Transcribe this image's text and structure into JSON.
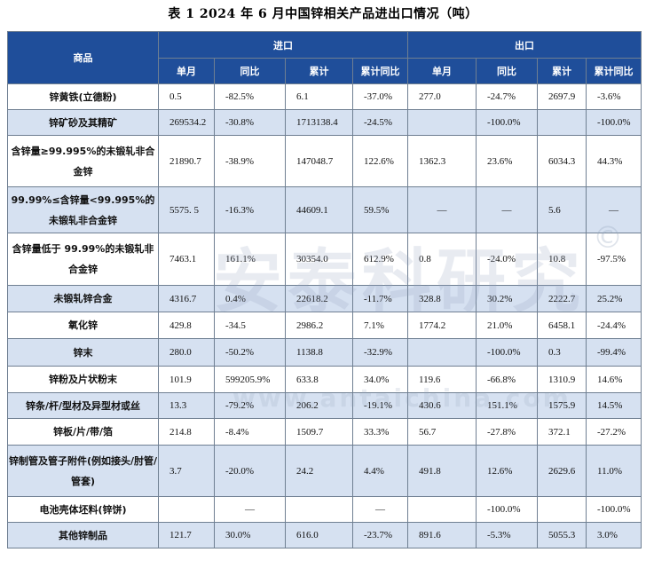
{
  "title": "表 1 2024 年 6 月中国锌相关产品进出口情况（吨）",
  "header": {
    "product": "商品",
    "import": "进口",
    "export": "出口",
    "cols": [
      "单月",
      "同比",
      "累计",
      "累计同比",
      "单月",
      "同比",
      "累计",
      "累计同比"
    ]
  },
  "rows": [
    {
      "name": "锌黄铁(立德粉)",
      "cells": [
        "0.5",
        "-82.5%",
        "6.1",
        "-37.0%",
        "277.0",
        "-24.7%",
        "2697.9",
        "-3.6%"
      ]
    },
    {
      "name": "锌矿砂及其精矿",
      "cells": [
        "269534.2",
        "-30.8%",
        "1713138.4",
        "-24.5%",
        "",
        "-100.0%",
        "",
        "-100.0%"
      ]
    },
    {
      "name": "含锌量≥99.995%的未锻轧非合金锌",
      "cells": [
        "21890.7",
        "-38.9%",
        "147048.7",
        "122.6%",
        "1362.3",
        "23.6%",
        "6034.3",
        "44.3%"
      ]
    },
    {
      "name": "99.99%≤含锌量<99.995%的未锻轧非合金锌",
      "cells": [
        "5575. 5",
        "-16.3%",
        "44609.1",
        "59.5%",
        "—",
        "—",
        "5.6",
        "—"
      ]
    },
    {
      "name": "含锌量低于 99.99%的未锻轧非合金锌",
      "cells": [
        "7463.1",
        "161.1%",
        "30354.0",
        "612.9%",
        "0.8",
        "-24.0%",
        "10.8",
        "-97.5%"
      ]
    },
    {
      "name": "未锻轧锌合金",
      "cells": [
        "4316.7",
        "0.4%",
        "22618.2",
        "-11.7%",
        "328.8",
        "30.2%",
        "2222.7",
        "25.2%"
      ]
    },
    {
      "name": "氧化锌",
      "cells": [
        "429.8",
        "-34.5",
        "2986.2",
        "7.1%",
        "1774.2",
        "21.0%",
        "6458.1",
        "-24.4%"
      ]
    },
    {
      "name": "锌末",
      "cells": [
        "280.0",
        "-50.2%",
        "1138.8",
        "-32.9%",
        "",
        "-100.0%",
        "0.3",
        "-99.4%"
      ]
    },
    {
      "name": "锌粉及片状粉末",
      "cells": [
        "101.9",
        "599205.9%",
        "633.8",
        "34.0%",
        "119.6",
        "-66.8%",
        "1310.9",
        "14.6%"
      ]
    },
    {
      "name": "锌条/杆/型材及异型材或丝",
      "cells": [
        "13.3",
        "-79.2%",
        "206.2",
        "-19.1%",
        "430.6",
        "151.1%",
        "1575.9",
        "14.5%"
      ]
    },
    {
      "name": "锌板/片/带/箔",
      "cells": [
        "214.8",
        "-8.4%",
        "1509.7",
        "33.3%",
        "56.7",
        "-27.8%",
        "372.1",
        "-27.2%"
      ]
    },
    {
      "name": "锌制管及管子附件(例如接头/肘管/管套)",
      "cells": [
        "3.7",
        "-20.0%",
        "24.2",
        "4.4%",
        "491.8",
        "12.6%",
        "2629.6",
        "11.0%"
      ]
    },
    {
      "name": "电池壳体坯料(锌饼)",
      "cells": [
        "",
        "—",
        "",
        "—",
        "",
        "-100.0%",
        "",
        "-100.0%"
      ]
    },
    {
      "name": "其他锌制品",
      "cells": [
        "121.7",
        "30.0%",
        "616.0",
        "-23.7%",
        "891.6",
        "-5.3%",
        "5055.3",
        "3.0%"
      ]
    }
  ],
  "watermark": {
    "text": "安泰科研究",
    "symbol": "©",
    "url": "www.antaichina.com"
  }
}
